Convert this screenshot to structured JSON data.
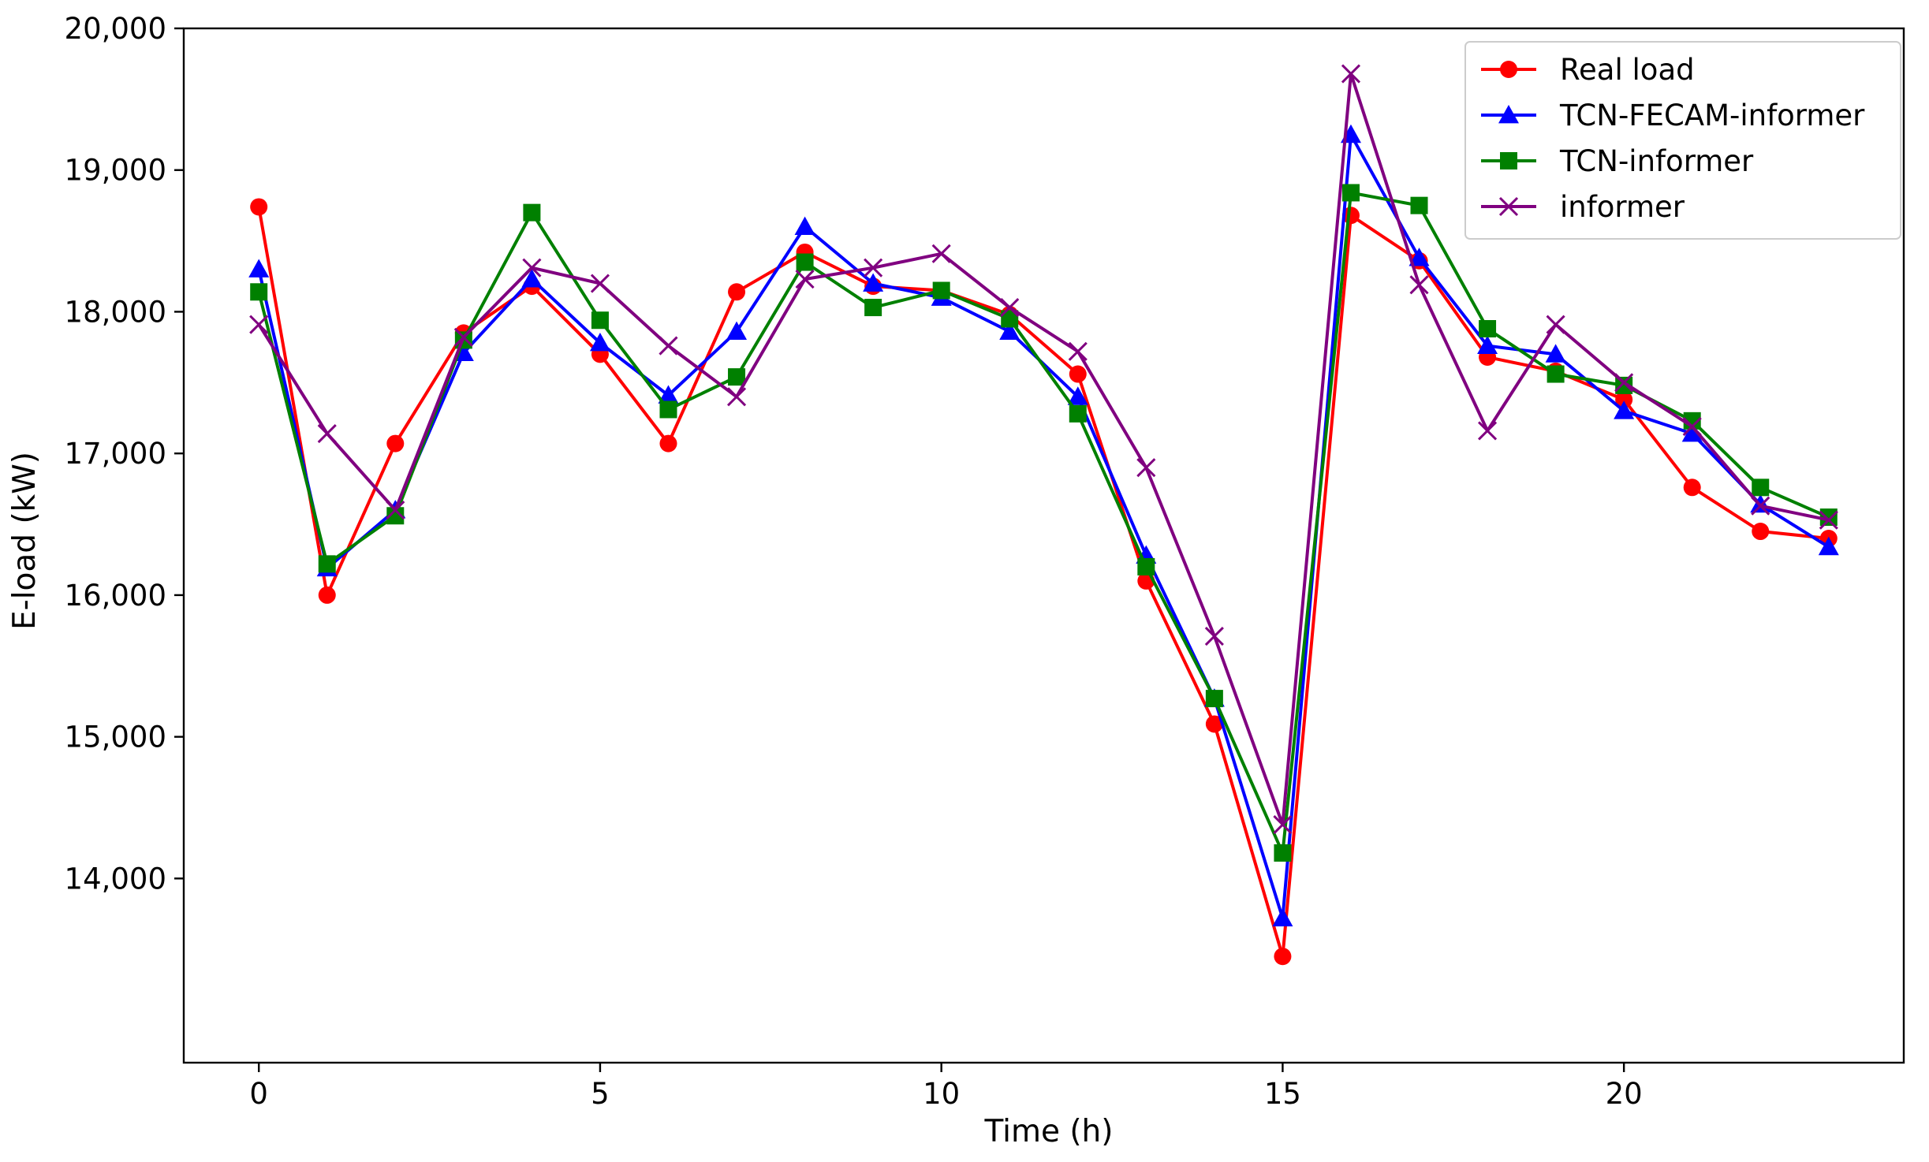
{
  "chart_data": {
    "type": "line",
    "title": "",
    "xlabel": "Time (h)",
    "ylabel": "E-load (kW)",
    "xlim": [
      -1.1,
      24.1
    ],
    "ylim": [
      12700,
      20000
    ],
    "xticks": [
      0,
      5,
      10,
      15,
      20
    ],
    "xtick_labels": [
      "0",
      "5",
      "10",
      "15",
      "20"
    ],
    "yticks": [
      14000,
      15000,
      16000,
      17000,
      18000,
      19000,
      20000
    ],
    "ytick_labels": [
      "14,000",
      "15,000",
      "16,000",
      "17,000",
      "18,000",
      "19,000",
      "20,000"
    ],
    "grid": false,
    "legend_position": "top-right",
    "x": [
      0,
      1,
      2,
      3,
      4,
      5,
      6,
      7,
      8,
      9,
      10,
      11,
      12,
      13,
      14,
      15,
      16,
      17,
      18,
      19,
      20,
      21,
      22,
      23
    ],
    "series": [
      {
        "name": "Real load",
        "color": "#ff0000",
        "marker": "circle",
        "values": [
          18740,
          16000,
          17070,
          17850,
          18180,
          17700,
          17070,
          18140,
          18420,
          18180,
          18150,
          17980,
          17560,
          16100,
          15090,
          13450,
          18680,
          18360,
          17680,
          17580,
          17380,
          16760,
          16450,
          16400
        ]
      },
      {
        "name": "TCN-FECAM-informer",
        "color": "#0000ff",
        "marker": "triangle",
        "values": [
          18300,
          16190,
          16600,
          17710,
          18230,
          17780,
          17410,
          17860,
          18600,
          18200,
          18100,
          17860,
          17400,
          16280,
          15270,
          13720,
          19250,
          18380,
          17760,
          17700,
          17300,
          17140,
          16640,
          16340
        ]
      },
      {
        "name": "TCN-informer",
        "color": "#008000",
        "marker": "square",
        "values": [
          18140,
          16220,
          16560,
          17800,
          18700,
          17940,
          17310,
          17540,
          18350,
          18030,
          18150,
          17950,
          17280,
          16200,
          15270,
          14180,
          18840,
          18750,
          17880,
          17560,
          17480,
          17230,
          16760,
          16550
        ]
      },
      {
        "name": "informer",
        "color": "#800080",
        "marker": "x",
        "values": [
          17910,
          17140,
          16600,
          17820,
          18310,
          18200,
          17760,
          17400,
          18230,
          18310,
          18410,
          18030,
          17720,
          16900,
          15710,
          14380,
          19680,
          18190,
          17160,
          17910,
          17500,
          17190,
          16630,
          16530
        ]
      }
    ]
  }
}
